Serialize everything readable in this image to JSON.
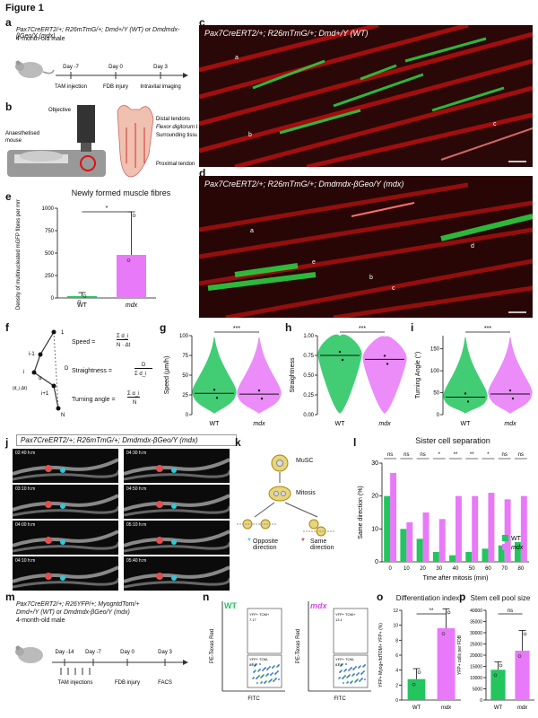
{
  "figure_title": "Figure 1",
  "panel_labels": [
    "a",
    "b",
    "c",
    "d",
    "e",
    "f",
    "g",
    "h",
    "i",
    "j",
    "k",
    "l",
    "m",
    "n",
    "o",
    "p"
  ],
  "panel_a": {
    "genotype_line1": "Pax7CreERT2/+; R26mTmG/+; Dmd+/Y (WT) or Dmdmdx-βGeo/Y (mdx)",
    "genotype_line2": "4-month-old male",
    "timeline_days": [
      "Day -7",
      "Day 0",
      "Day 3"
    ],
    "timeline_events": [
      "TAM injection",
      "FDB injury",
      "Intravital imaging"
    ]
  },
  "panel_b": {
    "labels": [
      "Objective",
      "Anaesthetised mouse",
      "Distal tendons",
      "Flexor digitorum brevis",
      "Surrounding tissues",
      "Proximal tendon"
    ]
  },
  "panel_c": {
    "title": "Pax7CreERT2/+; R26mTmG/+; Dmd+/Y (WT)",
    "arrows": [
      "a",
      "b",
      "c"
    ]
  },
  "panel_d": {
    "title": "Pax7CreERT2/+; R26mTmG/+; Dmdmdx-βGeo/Y (mdx)",
    "arrows": [
      "a",
      "b",
      "c",
      "d",
      "e"
    ]
  },
  "chart_data": [
    {
      "id": "e",
      "type": "bar",
      "title": "Newly formed muscle fibres",
      "ylabel": "Density of multinucleated mGFP fibres per mm²",
      "categories": [
        "WT",
        "mdx"
      ],
      "values": [
        20,
        480
      ],
      "err_upper": [
        60,
        960
      ],
      "ylim": [
        0,
        1000
      ],
      "yticks": [
        0,
        250,
        500,
        750,
        1000
      ],
      "significance": "*",
      "colors": [
        "#22c55e",
        "#e879f9"
      ]
    },
    {
      "id": "g",
      "type": "violin",
      "ylabel": "Speed (μm/h)",
      "categories": [
        "WT",
        "mdx"
      ],
      "medians": [
        27,
        26
      ],
      "ylim": [
        0,
        100
      ],
      "yticks": [
        0,
        25,
        50,
        75,
        100
      ],
      "significance": "***",
      "colors": [
        "#22c55e",
        "#e879f9"
      ]
    },
    {
      "id": "h",
      "type": "violin",
      "ylabel": "Straightness",
      "categories": [
        "WT",
        "mdx"
      ],
      "medians": [
        0.75,
        0.7
      ],
      "ylim": [
        0,
        1.0
      ],
      "yticks": [
        0,
        0.25,
        0.5,
        0.75,
        1.0
      ],
      "yticklabels": [
        "0.00",
        "0.25",
        "0.50",
        "0.75",
        "1.00"
      ],
      "significance": "***",
      "colors": [
        "#22c55e",
        "#e879f9"
      ]
    },
    {
      "id": "i",
      "type": "violin",
      "ylabel": "Turning Angle (°)",
      "categories": [
        "WT",
        "mdx"
      ],
      "medians": [
        40,
        47
      ],
      "ylim": [
        0,
        180
      ],
      "yticks": [
        0,
        50,
        100,
        150
      ],
      "significance": "***",
      "colors": [
        "#22c55e",
        "#e879f9"
      ]
    },
    {
      "id": "l",
      "type": "bar",
      "title": "Sister cell separation",
      "xlabel": "Time after mitosis (min)",
      "ylabel": "Same direction (%)",
      "categories": [
        "0",
        "10",
        "20",
        "30",
        "40",
        "50",
        "60",
        "70",
        "80"
      ],
      "series": [
        {
          "name": "WT",
          "values": [
            20,
            10,
            7,
            3,
            2,
            3,
            4,
            5,
            6
          ],
          "color": "#22c55e"
        },
        {
          "name": "mdx",
          "values": [
            27,
            12,
            15,
            13,
            20,
            20,
            21,
            19,
            20
          ],
          "color": "#e879f9"
        }
      ],
      "significance": [
        "ns",
        "ns",
        "ns",
        "*",
        "**",
        "**",
        "*",
        "ns",
        "ns"
      ],
      "ylim": [
        0,
        30
      ],
      "yticks": [
        0,
        10,
        20,
        30
      ],
      "legend": "bottom-right"
    },
    {
      "id": "o",
      "type": "bar",
      "title": "Differentiation index",
      "ylabel": "YFP+ Myog+/tdTOM+ YFP+ (%)",
      "categories": [
        "WT",
        "mdx"
      ],
      "values": [
        2.8,
        9.6
      ],
      "err_upper": [
        4.2,
        12.2
      ],
      "ylim": [
        0,
        12
      ],
      "yticks": [
        0,
        2,
        4,
        6,
        8,
        10,
        12
      ],
      "significance": "**",
      "colors": [
        "#22c55e",
        "#e879f9"
      ]
    },
    {
      "id": "p",
      "type": "bar",
      "title": "Stem cell pool size",
      "ylabel": "YFP+ cells per FDB",
      "categories": [
        "WT",
        "mdx"
      ],
      "values": [
        13500,
        22000
      ],
      "err_upper": [
        17000,
        31000
      ],
      "ylim": [
        0,
        40000
      ],
      "yticks": [
        0,
        5000,
        10000,
        15000,
        20000,
        25000,
        30000,
        35000,
        40000
      ],
      "significance": "ns",
      "colors": [
        "#22c55e",
        "#e879f9"
      ]
    }
  ],
  "panel_f": {
    "speed_label": "Speed =",
    "straightness_label": "Straightness =",
    "turning_label": "Turning angle =",
    "nodes": [
      "1",
      "i-1",
      "i",
      "i+1",
      "N"
    ],
    "letters": [
      "D",
      "α",
      "(d_i,Δt)"
    ],
    "formula_speed_num": "Σ d_i",
    "formula_speed_den": "N · Δt",
    "formula_straight_num": "D",
    "formula_straight_den": "Σ d_i",
    "formula_turn_num": "Σ α_i",
    "formula_turn_den": "N"
  },
  "panel_j": {
    "title": "Pax7CreERT2/+; R26mTmG/+; Dmdmdx-βGeo/Y (mdx)",
    "timestamps_left": [
      "02:40 h:m",
      "03:10 h:m",
      "04:00 h:m",
      "04:10 h:m"
    ],
    "timestamps_right": [
      "04:30 h:m",
      "04:50 h:m",
      "05:10 h:m",
      "05:40 h:m"
    ]
  },
  "panel_k": {
    "labels": [
      "MuSC",
      "Mitosis",
      "Opposite direction",
      "Same direction"
    ]
  },
  "panel_m": {
    "genotype_line1": "Pax7CreERT2/+; R26YFP/+; MyogntdTom/+",
    "genotype_line2": "Dmd+/Y (WT) or Dmdmdx-βGeo/Y (mdx)",
    "genotype_line3": "4-month-old male",
    "timeline_days": [
      "Day -14",
      "Day -7",
      "Day 0",
      "Day 3"
    ],
    "timeline_events": [
      "TAM injections",
      "FDB injury",
      "FACS"
    ]
  },
  "panel_n": {
    "wt_label": "WT",
    "mdx_label": "mdx",
    "xlabel": "FITC",
    "ylabel": "PE-Texas Red",
    "wt_gates": [
      {
        "name": "YFP+ TOM+",
        "value": "7.17"
      },
      {
        "name": "YFP+ TOM-",
        "value": "85.4"
      }
    ],
    "mdx_gates": [
      {
        "name": "YFP+ TOM+",
        "value": "13.1"
      },
      {
        "name": "YFP+ TOM-",
        "value": "81.5"
      }
    ]
  },
  "legend_wt": "WT",
  "legend_mdx": "mdx"
}
